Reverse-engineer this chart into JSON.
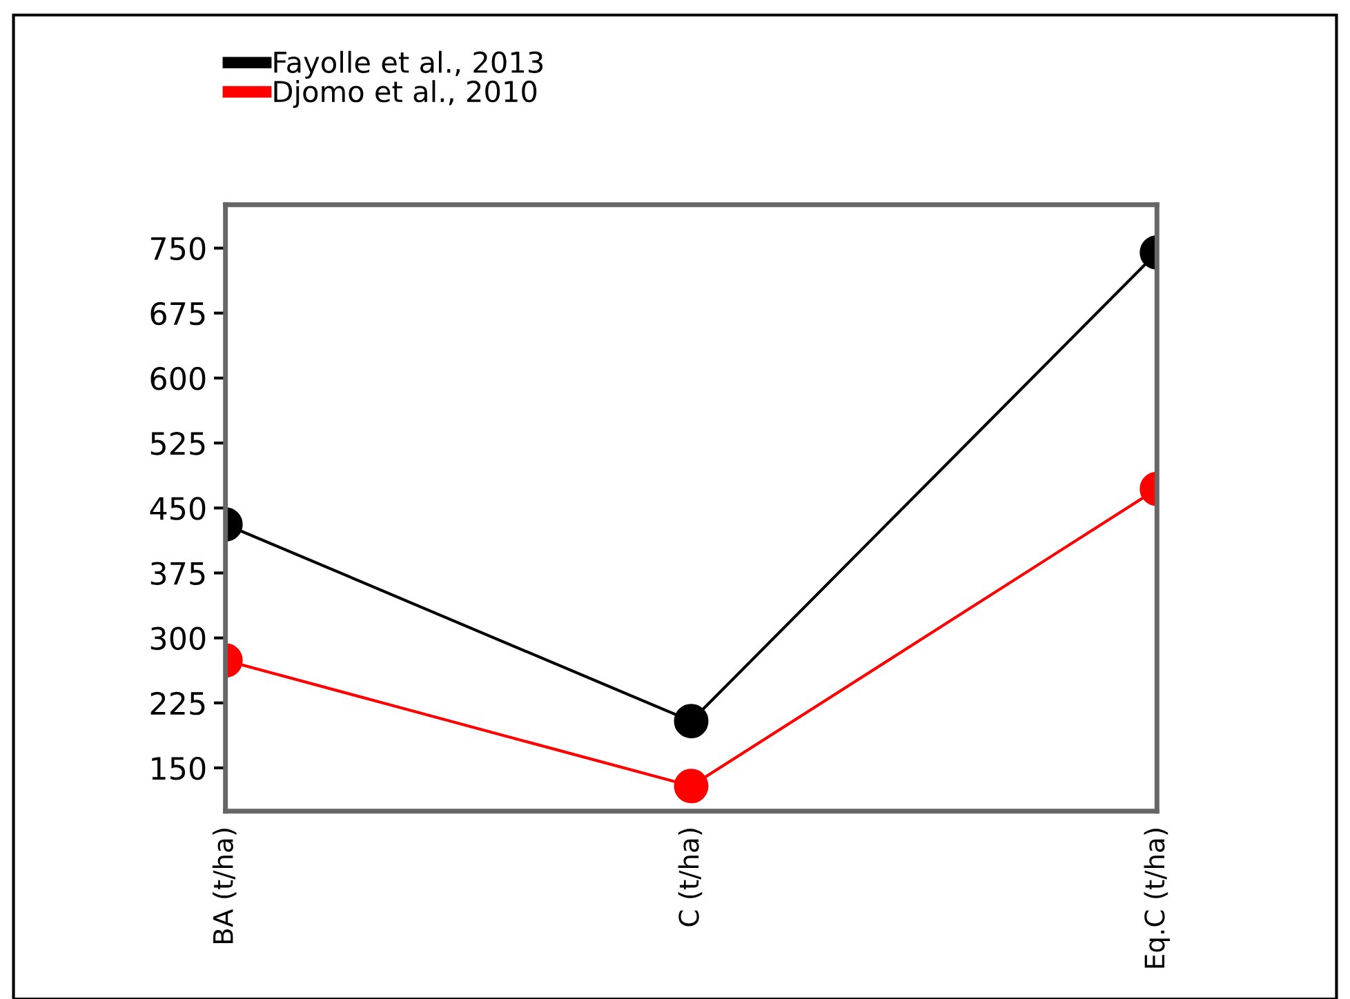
{
  "chart_data": {
    "type": "line",
    "categories": [
      "BA (t/ha)",
      "C (t/ha)",
      "Eq.C (t/ha)"
    ],
    "series": [
      {
        "name": "Fayolle et al., 2013",
        "color": "#000000",
        "values": [
          431,
          204,
          745
        ]
      },
      {
        "name": "Djomo et al., 2010",
        "color": "#ff0000",
        "values": [
          274,
          129,
          472
        ]
      }
    ],
    "ylim": [
      100,
      800
    ],
    "yticks": [
      150,
      225,
      300,
      375,
      450,
      525,
      600,
      675,
      750
    ],
    "marker": "circle",
    "line_style": "solid",
    "grid": false,
    "legend": "top left"
  }
}
